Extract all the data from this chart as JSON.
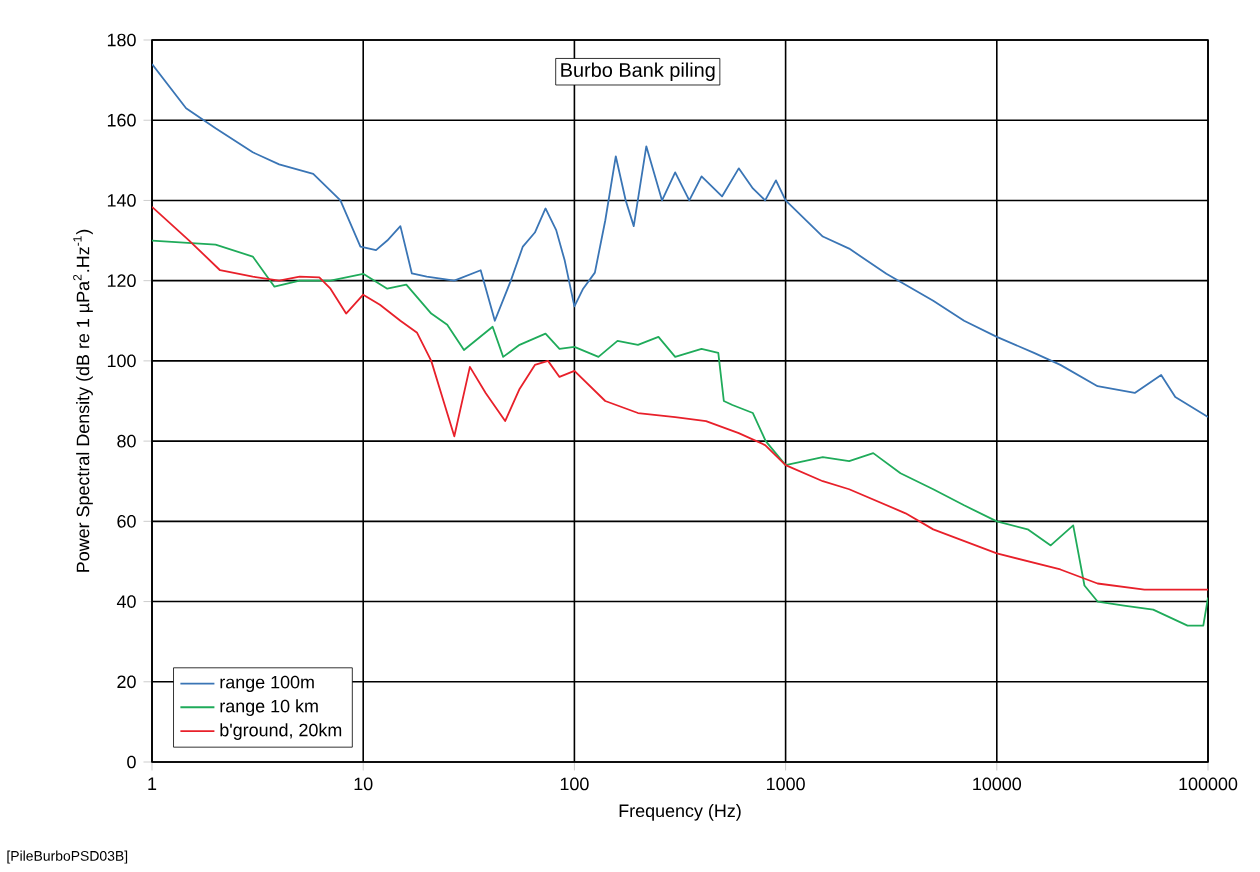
{
  "chart_data": {
    "type": "line",
    "title": "Burbo Bank piling",
    "xlabel": "Frequency (Hz)",
    "ylabel": "Power Spectral Density (dB re 1 µPa$^{2}$.Hz$^{-1}$)",
    "annotations": [
      "[PileBurboPSD03B]"
    ],
    "log": "x",
    "grid": true,
    "legend": "bottom left",
    "marker": "none",
    "line_style": "solid",
    "xlim": [
      1,
      100000
    ],
    "xticks": [
      1,
      10,
      100,
      1000,
      10000,
      100000
    ],
    "ylim": [
      0,
      180
    ],
    "yticks": [
      0,
      20,
      40,
      60,
      80,
      100,
      120,
      140,
      160,
      180
    ],
    "series": [
      {
        "name": "range 100m",
        "color": "#3a75b5",
        "x": [
          1,
          1.45,
          2,
          3,
          4,
          5.8,
          7.8,
          9.7,
          11.5,
          13,
          15,
          17,
          20,
          27,
          36,
          42,
          50,
          57,
          65,
          73,
          82,
          90,
          100,
          110,
          125,
          140,
          157,
          175,
          191,
          219,
          260,
          300,
          350,
          400,
          500,
          600,
          700,
          800,
          900,
          1000,
          1500,
          2000,
          3000,
          5000,
          7000,
          10000,
          15000,
          20000,
          30000,
          45000,
          60000,
          70000,
          100000
        ],
        "values": [
          174,
          163,
          158,
          152,
          149,
          146.6,
          140,
          128.5,
          127.6,
          130,
          133.6,
          121.8,
          121,
          120,
          122.6,
          110,
          120,
          128.5,
          132,
          138,
          132.6,
          125,
          113.6,
          118,
          122,
          135,
          151,
          140,
          133.6,
          153.5,
          140,
          147,
          140,
          146,
          141,
          148,
          143,
          140,
          145,
          140,
          131,
          128,
          121.7,
          115,
          110,
          106,
          102,
          99,
          93.7,
          92,
          96.5,
          91,
          86
        ]
      },
      {
        "name": "range 10 km",
        "color": "#1fab5a",
        "x": [
          1,
          2,
          3,
          3.8,
          5,
          7,
          10,
          13,
          16,
          21,
          25,
          30,
          41,
          46,
          55,
          73,
          85,
          100,
          130,
          160,
          200,
          250,
          300,
          400,
          480,
          510,
          560,
          700,
          805,
          1000,
          1500,
          2000,
          2600,
          3500,
          5000,
          7000,
          10000,
          14000,
          18000,
          23000,
          26000,
          30000,
          40000,
          55000,
          80000,
          95000,
          100000
        ],
        "values": [
          130,
          129,
          126,
          118.5,
          120,
          120,
          121.7,
          118,
          119,
          111.8,
          109,
          102.7,
          108.5,
          101,
          104,
          106.8,
          103,
          103.5,
          101,
          105,
          104,
          106,
          101,
          103,
          102,
          90,
          89,
          87,
          80,
          74,
          76,
          75,
          77,
          72,
          68,
          64,
          60,
          58,
          54,
          59,
          44,
          40,
          39,
          38,
          34,
          34,
          41
        ]
      },
      {
        "name": "b'ground, 20km",
        "color": "#e8202a",
        "x": [
          1,
          1.5,
          2.1,
          3,
          4,
          5,
          6.2,
          7,
          8.3,
          10,
          12,
          15,
          18,
          21,
          24,
          27,
          32,
          38,
          47,
          55,
          65,
          75,
          85,
          100,
          140,
          200,
          300,
          420,
          600,
          800,
          1000,
          1500,
          2000,
          3700,
          5000,
          10000,
          20000,
          30000,
          50000,
          70000,
          100000
        ],
        "values": [
          138.4,
          130,
          122.6,
          121,
          120,
          121,
          120.8,
          118,
          111.8,
          116.5,
          114,
          110,
          107,
          100,
          90,
          81.2,
          98.5,
          92,
          85,
          93,
          99,
          100,
          96,
          97.5,
          90,
          87,
          86,
          85,
          82,
          79,
          74,
          70,
          68,
          62,
          58,
          52,
          48,
          44.5,
          43,
          43,
          43
        ]
      }
    ]
  }
}
